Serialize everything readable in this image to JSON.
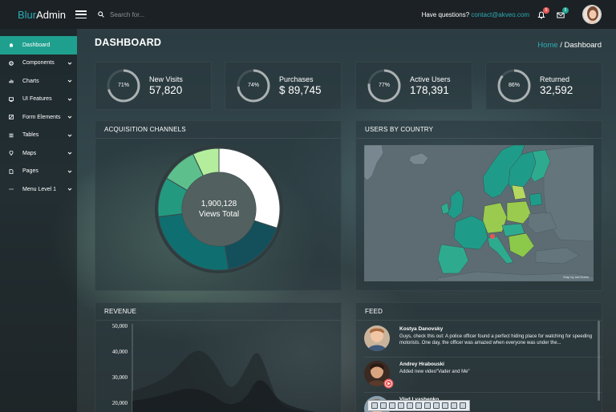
{
  "brand": {
    "part1": "Blur",
    "part2": "Admin"
  },
  "search": {
    "placeholder": "Search for..."
  },
  "header": {
    "question": "Have questions?",
    "email": "contact@akveo.com",
    "bell_count": "5",
    "mail_count": "5"
  },
  "sidebar": {
    "items": [
      {
        "label": "Dashboard",
        "icon": "home-icon"
      },
      {
        "label": "Components",
        "icon": "gear-icon"
      },
      {
        "label": "Charts",
        "icon": "bar-chart-icon"
      },
      {
        "label": "UI Features",
        "icon": "monitor-icon"
      },
      {
        "label": "Form Elements",
        "icon": "edit-icon"
      },
      {
        "label": "Tables",
        "icon": "list-icon"
      },
      {
        "label": "Maps",
        "icon": "map-pin-icon"
      },
      {
        "label": "Pages",
        "icon": "document-icon"
      },
      {
        "label": "Menu Level 1",
        "icon": "dots-icon"
      }
    ]
  },
  "page": {
    "title": "DASHBOARD",
    "breadcrumb_home": "Home",
    "breadcrumb_sep": "/",
    "breadcrumb_current": "Dashboard"
  },
  "stats": [
    {
      "percent": "71%",
      "fraction": 0.71,
      "label": "New Visits",
      "value": "57,820"
    },
    {
      "percent": "74%",
      "fraction": 0.74,
      "label": "Purchases",
      "value": "$ 89,745"
    },
    {
      "percent": "77%",
      "fraction": 0.77,
      "label": "Active Users",
      "value": "178,391"
    },
    {
      "percent": "86%",
      "fraction": 0.86,
      "label": "Returned",
      "value": "32,592"
    }
  ],
  "acquisition": {
    "title": "ACQUISITION CHANNELS",
    "total_value": "1,900,128",
    "total_label": "Views Total",
    "segments": [
      {
        "share": 0.3,
        "color": "#ffffff"
      },
      {
        "share": 0.175,
        "color": "#14505c"
      },
      {
        "share": 0.255,
        "color": "#0f6f70"
      },
      {
        "share": 0.105,
        "color": "#239a80"
      },
      {
        "share": 0.095,
        "color": "#5dbf8c"
      },
      {
        "share": 0.07,
        "color": "#b4ee9c"
      }
    ]
  },
  "country": {
    "title": "USERS BY COUNTRY",
    "credit": "Map by amCharts"
  },
  "revenue": {
    "title": "REVENUE",
    "ticks": [
      "50,000",
      "40,000",
      "30,000",
      "20,000"
    ]
  },
  "feed": {
    "title": "FEED",
    "items": [
      {
        "name": "Kostya Danovsky",
        "text": "Guys, check this out: A police officer found a perfect hiding place for watching for speeding motorists. One day, the officer was amazed when everyone was under the..."
      },
      {
        "name": "Andrey Hrabouski",
        "text": "Added new video\"Vader and Me\""
      },
      {
        "name": "Vlad Lyashenko",
        "text": ""
      }
    ]
  },
  "colors": {
    "accent": "#2dacb4",
    "active": "#1fa08f",
    "bell_badge": "#e85656",
    "mail_badge": "#1fa08f"
  }
}
